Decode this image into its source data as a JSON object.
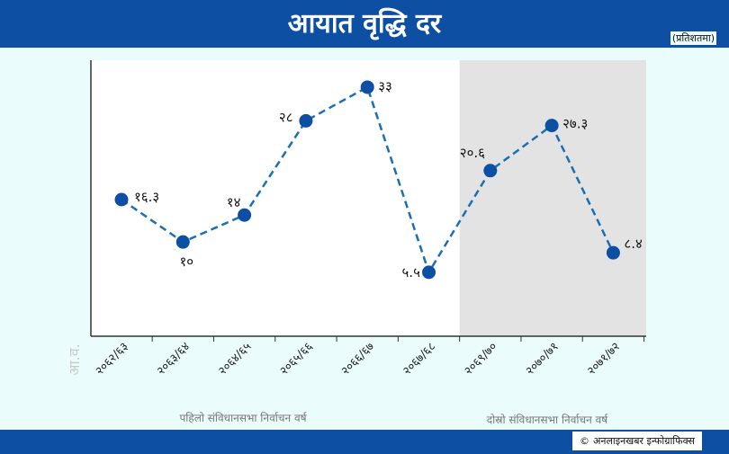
{
  "header": {
    "title": "आयात वृद्धि दर",
    "unit": "(प्रतिशतमा)"
  },
  "footer": {
    "credit_icon": "©",
    "credit_text": "अनलाइनखबर इन्फोग्राफिक्स"
  },
  "chart_data": {
    "type": "line",
    "title": "आयात वृद्धि दर",
    "unit": "(प्रतिशतमा)",
    "xlabel": "आ.व.",
    "ylabel": "",
    "categories": [
      "२०६२/६३",
      "२०६३/६४",
      "२०६४/६५",
      "२०६५/६६",
      "२०६६/६७",
      "२०६७/६८",
      "२०६९/७०",
      "२०७०/७१",
      "२०७१/७२"
    ],
    "series": [
      {
        "values": [
          16.3,
          10,
          14,
          28,
          33,
          5.5,
          20.6,
          27.3,
          8.4
        ],
        "labels": [
          "१६.३",
          "१०",
          "१४",
          "२८",
          "३३",
          "५.५",
          "२०.६",
          "२७.३",
          "८.४"
        ]
      }
    ],
    "ylim": [
      -4,
      37
    ],
    "grid": false,
    "period_labels": [
      "पहिलो संविधानसभा निर्वाचन वर्ष",
      "दोस्रो संविधानसभा निर्वाचन वर्ष"
    ],
    "shaded_from_index": 6,
    "colors": {
      "line": "#1a6fb5",
      "point": "#0d4fa3",
      "shade": "#e3e3e3",
      "plot_bg": "#ffffff"
    }
  }
}
